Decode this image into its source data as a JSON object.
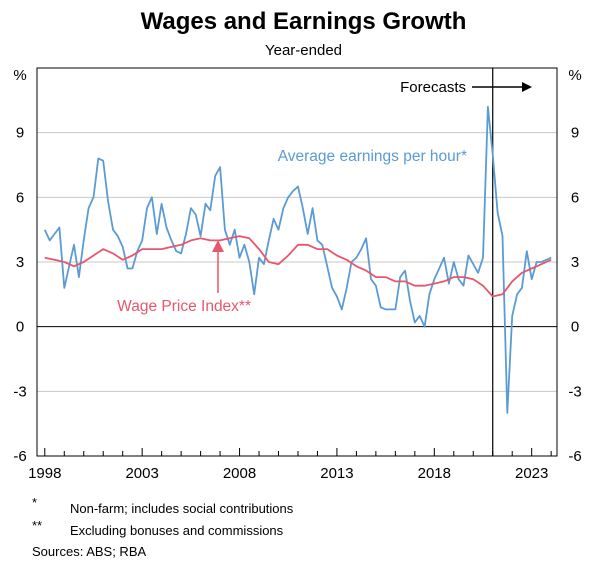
{
  "chart_data": {
    "type": "line",
    "title": "Wages and Earnings Growth",
    "subtitle": "Year-ended",
    "ylabel_left": "%",
    "ylabel_right": "%",
    "ylim": [
      -6,
      12
    ],
    "xlim": [
      1997.6,
      2024.3
    ],
    "yticks": [
      -6,
      -3,
      0,
      3,
      6,
      9
    ],
    "xticks": [
      1998,
      2003,
      2008,
      2013,
      2018,
      2023
    ],
    "grid": true,
    "forecast_start": 2021.0,
    "annotations": {
      "forecasts": "Forecasts",
      "aeph_label": "Average earnings per hour*",
      "wpi_label": "Wage Price Index**"
    },
    "series": [
      {
        "name": "Average earnings per hour*",
        "color": "#5b9bd5",
        "points": [
          [
            1998.0,
            4.5
          ],
          [
            1998.25,
            4.0
          ],
          [
            1998.5,
            4.3
          ],
          [
            1998.75,
            4.6
          ],
          [
            1999.0,
            1.8
          ],
          [
            1999.25,
            2.8
          ],
          [
            1999.5,
            3.8
          ],
          [
            1999.75,
            2.3
          ],
          [
            2000.0,
            4.0
          ],
          [
            2000.25,
            5.5
          ],
          [
            2000.5,
            6.0
          ],
          [
            2000.75,
            7.8
          ],
          [
            2001.0,
            7.7
          ],
          [
            2001.25,
            5.8
          ],
          [
            2001.5,
            4.5
          ],
          [
            2001.75,
            4.2
          ],
          [
            2002.0,
            3.7
          ],
          [
            2002.25,
            2.7
          ],
          [
            2002.5,
            2.7
          ],
          [
            2002.75,
            3.5
          ],
          [
            2003.0,
            4.0
          ],
          [
            2003.25,
            5.5
          ],
          [
            2003.5,
            6.0
          ],
          [
            2003.75,
            4.3
          ],
          [
            2004.0,
            5.7
          ],
          [
            2004.25,
            4.6
          ],
          [
            2004.5,
            4.0
          ],
          [
            2004.75,
            3.5
          ],
          [
            2005.0,
            3.4
          ],
          [
            2005.25,
            4.3
          ],
          [
            2005.5,
            5.5
          ],
          [
            2005.75,
            5.2
          ],
          [
            2006.0,
            4.2
          ],
          [
            2006.25,
            5.7
          ],
          [
            2006.5,
            5.4
          ],
          [
            2006.75,
            7.0
          ],
          [
            2007.0,
            7.4
          ],
          [
            2007.25,
            4.5
          ],
          [
            2007.5,
            3.8
          ],
          [
            2007.75,
            4.5
          ],
          [
            2008.0,
            3.2
          ],
          [
            2008.25,
            3.8
          ],
          [
            2008.5,
            3.0
          ],
          [
            2008.75,
            1.5
          ],
          [
            2009.0,
            3.2
          ],
          [
            2009.25,
            2.9
          ],
          [
            2009.5,
            4.0
          ],
          [
            2009.75,
            5.0
          ],
          [
            2010.0,
            4.5
          ],
          [
            2010.25,
            5.5
          ],
          [
            2010.5,
            6.0
          ],
          [
            2010.75,
            6.3
          ],
          [
            2011.0,
            6.5
          ],
          [
            2011.25,
            5.5
          ],
          [
            2011.5,
            4.3
          ],
          [
            2011.75,
            5.5
          ],
          [
            2012.0,
            4.0
          ],
          [
            2012.25,
            3.8
          ],
          [
            2012.5,
            2.8
          ],
          [
            2012.75,
            1.8
          ],
          [
            2013.0,
            1.4
          ],
          [
            2013.25,
            0.8
          ],
          [
            2013.5,
            1.8
          ],
          [
            2013.75,
            3.0
          ],
          [
            2014.0,
            3.2
          ],
          [
            2014.25,
            3.6
          ],
          [
            2014.5,
            4.1
          ],
          [
            2014.75,
            2.2
          ],
          [
            2015.0,
            1.9
          ],
          [
            2015.25,
            0.9
          ],
          [
            2015.5,
            0.8
          ],
          [
            2015.75,
            0.8
          ],
          [
            2016.0,
            0.8
          ],
          [
            2016.25,
            2.3
          ],
          [
            2016.5,
            2.6
          ],
          [
            2016.75,
            1.2
          ],
          [
            2017.0,
            0.2
          ],
          [
            2017.25,
            0.5
          ],
          [
            2017.5,
            0.0
          ],
          [
            2017.75,
            1.5
          ],
          [
            2018.0,
            2.2
          ],
          [
            2018.25,
            2.7
          ],
          [
            2018.5,
            3.2
          ],
          [
            2018.75,
            2.0
          ],
          [
            2019.0,
            3.0
          ],
          [
            2019.25,
            2.2
          ],
          [
            2019.5,
            1.9
          ],
          [
            2019.75,
            3.3
          ],
          [
            2020.0,
            2.9
          ],
          [
            2020.25,
            2.5
          ],
          [
            2020.5,
            3.2
          ],
          [
            2020.75,
            10.2
          ],
          [
            2021.0,
            8.0
          ],
          [
            2021.25,
            5.3
          ],
          [
            2021.5,
            4.2
          ],
          [
            2021.75,
            -4.0
          ],
          [
            2022.0,
            0.5
          ],
          [
            2022.25,
            1.5
          ],
          [
            2022.5,
            1.8
          ],
          [
            2022.75,
            3.5
          ],
          [
            2023.0,
            2.2
          ],
          [
            2023.25,
            3.0
          ],
          [
            2023.5,
            3.0
          ],
          [
            2023.75,
            3.1
          ],
          [
            2024.0,
            3.2
          ]
        ]
      },
      {
        "name": "Wage Price Index**",
        "color": "#e8566b",
        "points": [
          [
            1998.0,
            3.2
          ],
          [
            1998.5,
            3.1
          ],
          [
            1999.0,
            3.0
          ],
          [
            1999.5,
            2.8
          ],
          [
            2000.0,
            3.0
          ],
          [
            2000.5,
            3.3
          ],
          [
            2001.0,
            3.6
          ],
          [
            2001.5,
            3.4
          ],
          [
            2002.0,
            3.1
          ],
          [
            2002.5,
            3.3
          ],
          [
            2003.0,
            3.6
          ],
          [
            2003.5,
            3.6
          ],
          [
            2004.0,
            3.6
          ],
          [
            2004.5,
            3.7
          ],
          [
            2005.0,
            3.8
          ],
          [
            2005.5,
            4.0
          ],
          [
            2006.0,
            4.1
          ],
          [
            2006.5,
            4.0
          ],
          [
            2007.0,
            4.0
          ],
          [
            2007.5,
            4.1
          ],
          [
            2008.0,
            4.2
          ],
          [
            2008.5,
            4.1
          ],
          [
            2009.0,
            3.6
          ],
          [
            2009.5,
            3.0
          ],
          [
            2010.0,
            2.9
          ],
          [
            2010.5,
            3.3
          ],
          [
            2011.0,
            3.8
          ],
          [
            2011.5,
            3.8
          ],
          [
            2012.0,
            3.6
          ],
          [
            2012.5,
            3.6
          ],
          [
            2013.0,
            3.3
          ],
          [
            2013.5,
            3.1
          ],
          [
            2014.0,
            2.8
          ],
          [
            2014.5,
            2.6
          ],
          [
            2015.0,
            2.3
          ],
          [
            2015.5,
            2.3
          ],
          [
            2016.0,
            2.1
          ],
          [
            2016.5,
            2.1
          ],
          [
            2017.0,
            1.9
          ],
          [
            2017.5,
            1.9
          ],
          [
            2018.0,
            2.0
          ],
          [
            2018.5,
            2.1
          ],
          [
            2019.0,
            2.3
          ],
          [
            2019.5,
            2.3
          ],
          [
            2020.0,
            2.2
          ],
          [
            2020.5,
            1.9
          ],
          [
            2021.0,
            1.4
          ],
          [
            2021.5,
            1.5
          ],
          [
            2022.0,
            2.1
          ],
          [
            2022.5,
            2.5
          ],
          [
            2023.0,
            2.7
          ],
          [
            2023.5,
            2.9
          ],
          [
            2024.0,
            3.1
          ]
        ]
      }
    ]
  },
  "notes": [
    {
      "mark": "*",
      "text": "Non-farm; includes social contributions"
    },
    {
      "mark": "**",
      "text": "Excluding bonuses and commissions"
    }
  ],
  "sources": "Sources: ABS; RBA"
}
